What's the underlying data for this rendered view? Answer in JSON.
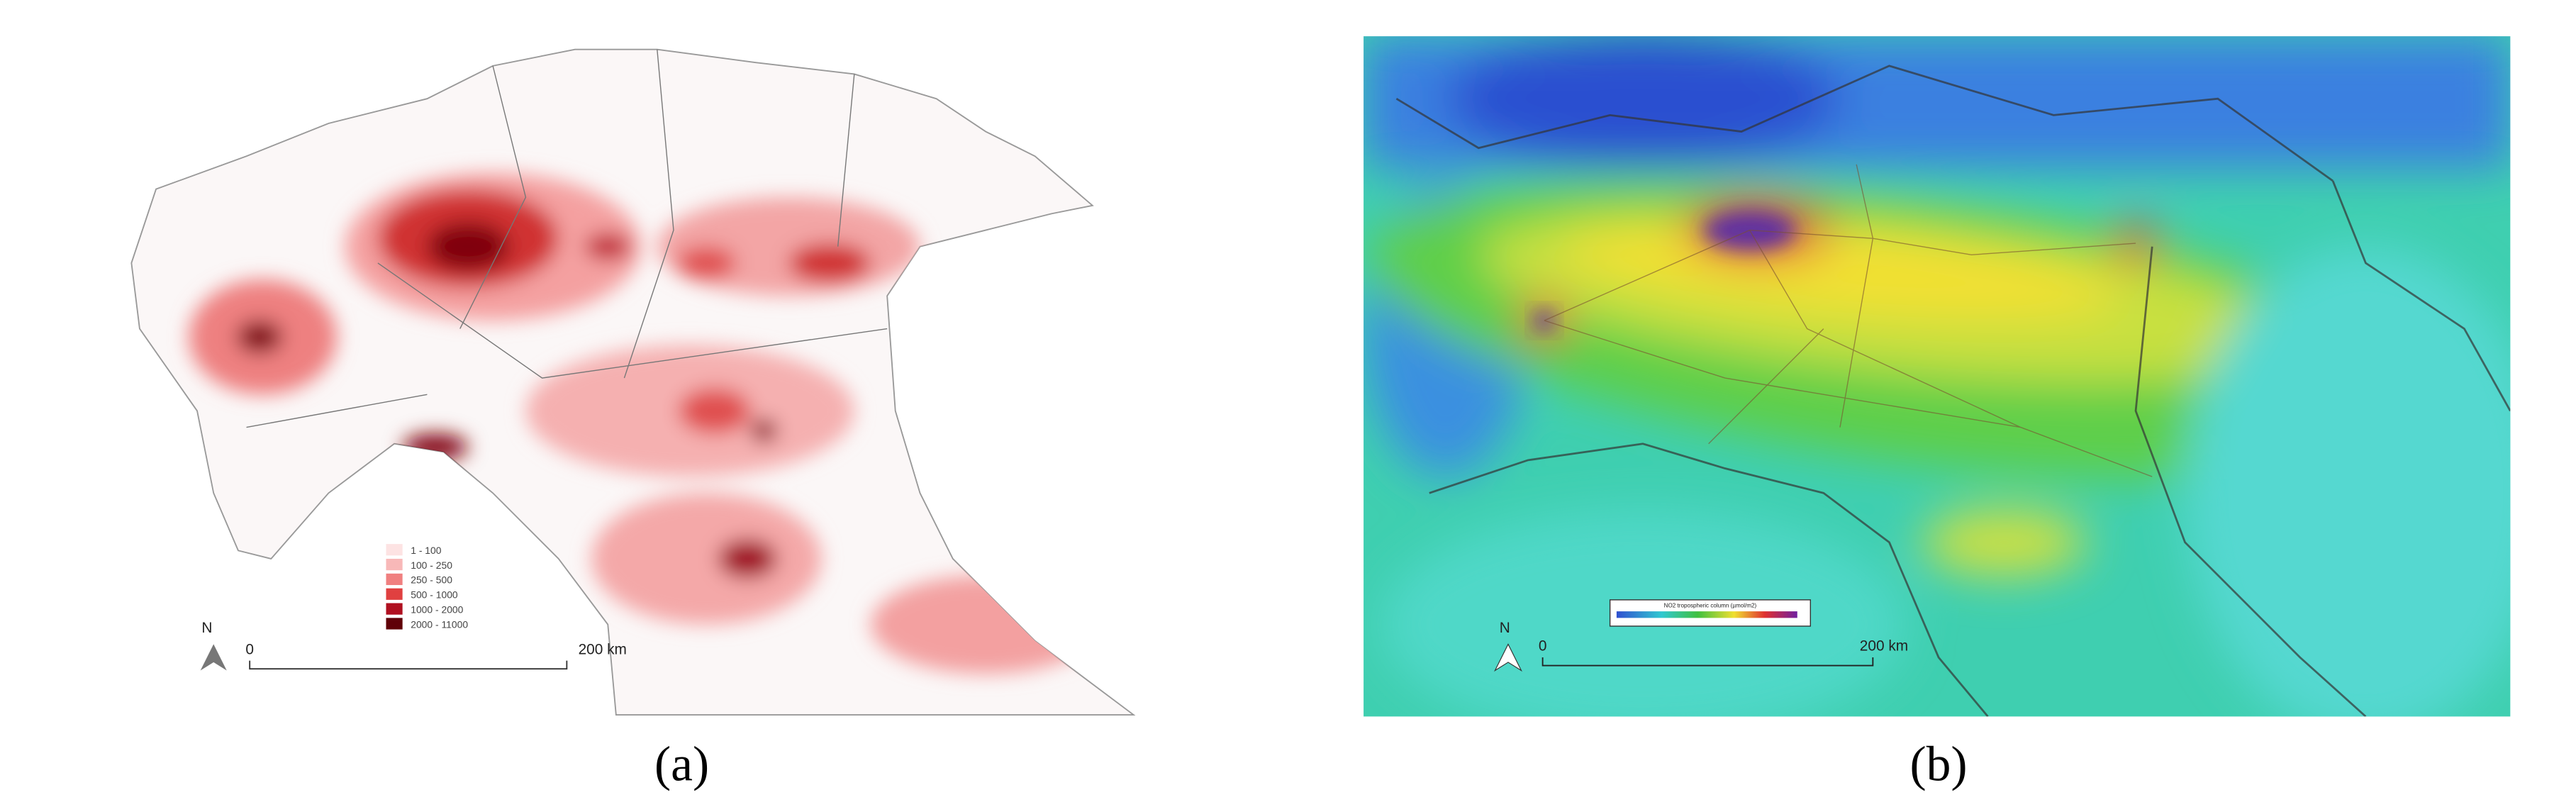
{
  "panels": [
    {
      "caption": "(a)",
      "north": "N",
      "legend": [
        "1 - 100",
        "100 - 250",
        "250 - 500",
        "500 - 1000",
        "1000 - 2000",
        "2000 - 11000"
      ],
      "scale_bar": {
        "start": "0",
        "end": "200 km"
      }
    },
    {
      "caption": "(b)",
      "north": "N",
      "colorbar_title": "NO2 tropospheric column (µmol/m2)",
      "scale_bar": {
        "start": "0",
        "end": "200 km"
      }
    }
  ]
}
